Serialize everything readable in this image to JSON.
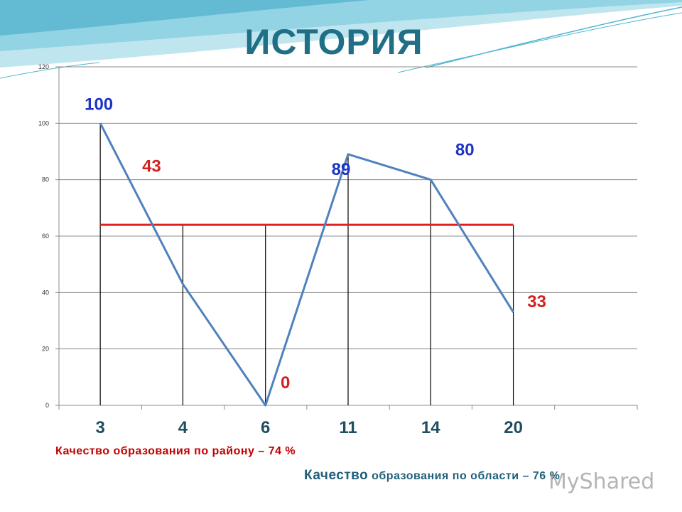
{
  "slide": {
    "title": "ИСТОРИЯ",
    "note_district": "Качество образования по району – 74 %",
    "note_region_word": "Качество",
    "note_region_rest": " образования по области – 76 %",
    "watermark": "MyShared",
    "colors": {
      "title": "#1f6f86",
      "teal_swoosh": "#4fb6cf",
      "note_district": "#c00000",
      "note_region": "#1f5f7a"
    }
  },
  "chart_data": {
    "type": "line",
    "categories": [
      "3",
      "4",
      "6",
      "11",
      "14",
      "20"
    ],
    "series": [
      {
        "values": [
          100,
          43,
          0,
          89,
          80,
          33
        ],
        "color": "#4f81bd"
      }
    ],
    "reference_line": {
      "value": 64,
      "color": "#e02020",
      "from_category": "3",
      "to_category": "20"
    },
    "data_labels": [
      "100",
      "43",
      "0",
      "89",
      "80",
      "33"
    ],
    "data_label_colors": [
      "#1c34c4",
      "#d42020",
      "#d42020",
      "#1c34c4",
      "#1c34c4",
      "#d42020"
    ],
    "ylim": [
      0,
      120
    ],
    "yticks": [
      "0",
      "20",
      "40",
      "60",
      "80",
      "100",
      "120"
    ],
    "category_slots": 7,
    "grid": true,
    "drop_lines": true,
    "tick_label_color": "#1f4e5f"
  }
}
